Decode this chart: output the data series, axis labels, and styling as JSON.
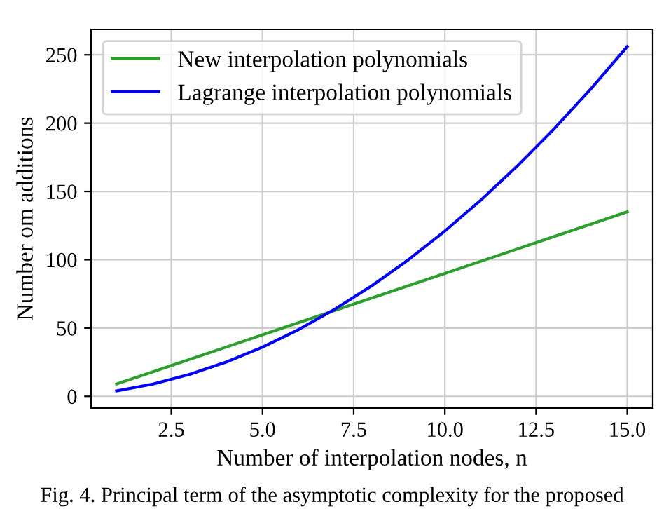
{
  "chart_data": {
    "type": "line",
    "x": [
      1,
      2,
      3,
      4,
      5,
      6,
      7,
      8,
      9,
      10,
      11,
      12,
      13,
      14,
      15
    ],
    "series": [
      {
        "name": "New interpolation polynomials",
        "color": "#2ca02c",
        "values": [
          9,
          18,
          27,
          36,
          45,
          54,
          63,
          72,
          81,
          90,
          99,
          108,
          117,
          126,
          135
        ]
      },
      {
        "name": "Lagrange interpolation polynomials",
        "color": "#0000ff",
        "values": [
          4,
          9,
          16,
          25,
          36,
          49,
          64,
          81,
          100,
          121,
          144,
          169,
          196,
          225,
          256
        ]
      }
    ],
    "xlabel": "Number of interpolation nodes, n",
    "ylabel": "Number om additions",
    "xlim": [
      0.3,
      15.7
    ],
    "ylim": [
      -8.6,
      268.6
    ],
    "xticks": [
      {
        "value": 2.5,
        "label": "2.5"
      },
      {
        "value": 5,
        "label": "5.0"
      },
      {
        "value": 7.5,
        "label": "7.5"
      },
      {
        "value": 10,
        "label": "10.0"
      },
      {
        "value": 12.5,
        "label": "12.5"
      },
      {
        "value": 15,
        "label": "15.0"
      }
    ],
    "yticks": [
      0,
      50,
      100,
      150,
      200,
      250
    ],
    "grid": true,
    "legend": "top left",
    "marker": "none",
    "line_style": "solid",
    "annotations": [
      "Fig. 4. Principal term of the asymptotic complexity for the proposed"
    ]
  }
}
